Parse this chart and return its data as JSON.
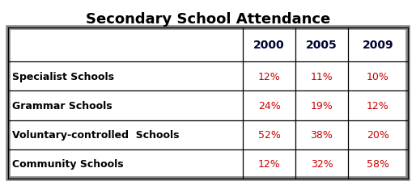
{
  "title": "Secondary School Attendance",
  "columns": [
    "",
    "2000",
    "2005",
    "2009"
  ],
  "rows": [
    [
      "Specialist Schools",
      "12%",
      "11%",
      "10%"
    ],
    [
      "Grammar Schools",
      "24%",
      "19%",
      "12%"
    ],
    [
      "Voluntary-controlled  Schools",
      "52%",
      "38%",
      "20%"
    ],
    [
      "Community Schools",
      "12%",
      "32%",
      "58%"
    ]
  ],
  "title_fontsize": 13,
  "header_fontsize": 10,
  "cell_fontsize": 9,
  "row_label_color": "#000000",
  "data_color": "#cc0000",
  "header_color": "#000033",
  "bg_color": "#ffffff",
  "outer_border_color": "#888888",
  "inner_border_color": "#000000",
  "title_color": "#000000"
}
